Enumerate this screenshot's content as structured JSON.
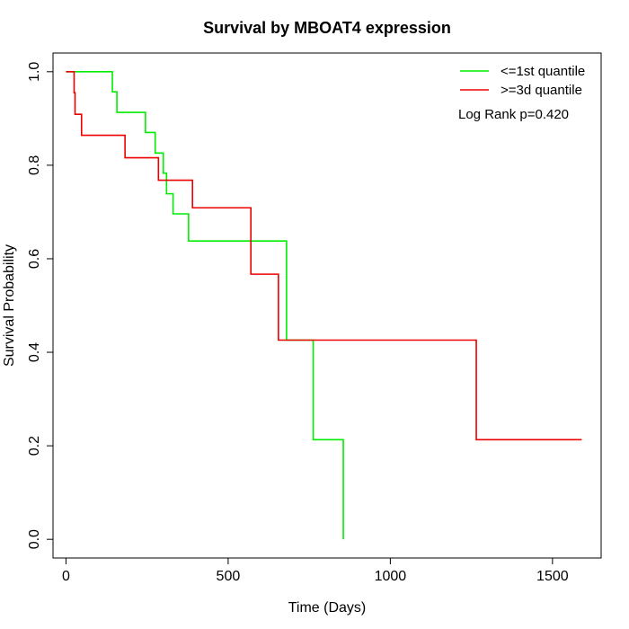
{
  "chart_data": {
    "type": "line",
    "title": "Survival by MBOAT4 expression",
    "xlabel": "Time (Days)",
    "ylabel": "Survival Probability",
    "xlim": [
      -40,
      1650
    ],
    "ylim": [
      -0.04,
      1.04
    ],
    "xticks": [
      0,
      500,
      1000,
      1500
    ],
    "yticks": [
      0.0,
      0.2,
      0.4,
      0.6,
      0.8,
      1.0
    ],
    "xtick_labels": [
      "0",
      "500",
      "1000",
      "1500"
    ],
    "ytick_labels": [
      "0.0",
      "0.2",
      "0.4",
      "0.6",
      "0.8",
      "1.0"
    ],
    "grid": false,
    "legend_position": "top-right",
    "annotation": "Log Rank p=0.420",
    "series": [
      {
        "name": "<=1st quantile",
        "color": "#00ee00",
        "x": [
          0,
          143,
          157,
          245,
          275,
          300,
          310,
          330,
          378,
          680,
          762,
          855
        ],
        "y": [
          1.0,
          0.957,
          0.913,
          0.87,
          0.826,
          0.783,
          0.739,
          0.696,
          0.638,
          0.426,
          0.213,
          0.0
        ]
      },
      {
        "name": ">=3d quantile",
        "color": "#ee0000",
        "x": [
          0,
          25,
          28,
          48,
          182,
          285,
          390,
          570,
          655,
          1265,
          1590
        ],
        "y": [
          1.0,
          0.955,
          0.909,
          0.864,
          0.816,
          0.768,
          0.709,
          0.567,
          0.426,
          0.213,
          0.213
        ]
      }
    ]
  }
}
